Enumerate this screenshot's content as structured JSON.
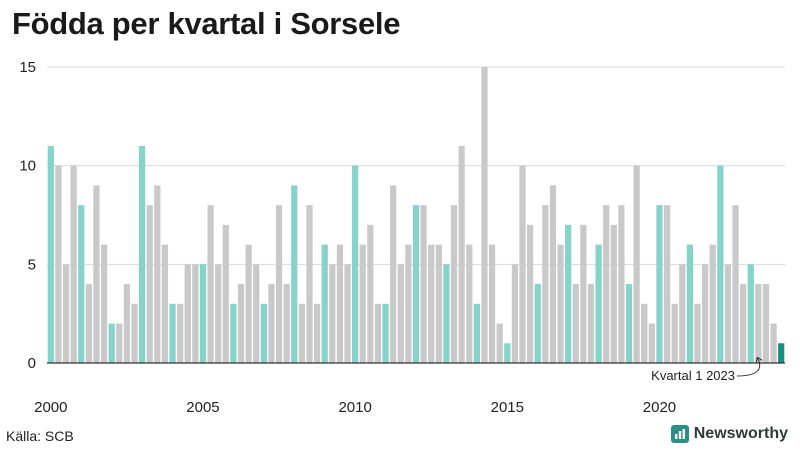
{
  "title": "Födda per kvartal i Sorsele",
  "source": "Källa: SCB",
  "brand": "Newsworthy",
  "colors": {
    "q1": "#86d3c9",
    "other": "#c9c9c9",
    "latest": "#1b8f82",
    "grid": "#d9d9d9",
    "axis": "#333333",
    "brand_logo": "#2f8f84"
  },
  "chart_data": {
    "type": "bar",
    "title": "Födda per kvartal i Sorsele",
    "xlabel": "",
    "ylabel": "",
    "ylim": [
      0,
      15
    ],
    "yticks": [
      0,
      5,
      10,
      15
    ],
    "grid": true,
    "x_tick_labels": [
      "2000",
      "2005",
      "2010",
      "2015",
      "2020"
    ],
    "start": {
      "year": 2000,
      "quarter": 1
    },
    "values": [
      11,
      10,
      5,
      10,
      8,
      4,
      9,
      6,
      2,
      2,
      4,
      3,
      11,
      8,
      9,
      6,
      3,
      3,
      5,
      5,
      5,
      8,
      5,
      7,
      3,
      4,
      6,
      5,
      3,
      4,
      8,
      4,
      9,
      3,
      8,
      3,
      6,
      5,
      6,
      5,
      10,
      6,
      7,
      3,
      3,
      9,
      5,
      6,
      8,
      8,
      6,
      6,
      5,
      8,
      11,
      6,
      3,
      15,
      6,
      2,
      1,
      5,
      10,
      7,
      4,
      8,
      9,
      6,
      7,
      4,
      7,
      4,
      6,
      8,
      7,
      8,
      4,
      10,
      3,
      2,
      8,
      8,
      3,
      5,
      6,
      3,
      5,
      6,
      10,
      5,
      8,
      4,
      5,
      4,
      4,
      2,
      1
    ],
    "annotation": "Kvartal 1 2023"
  }
}
